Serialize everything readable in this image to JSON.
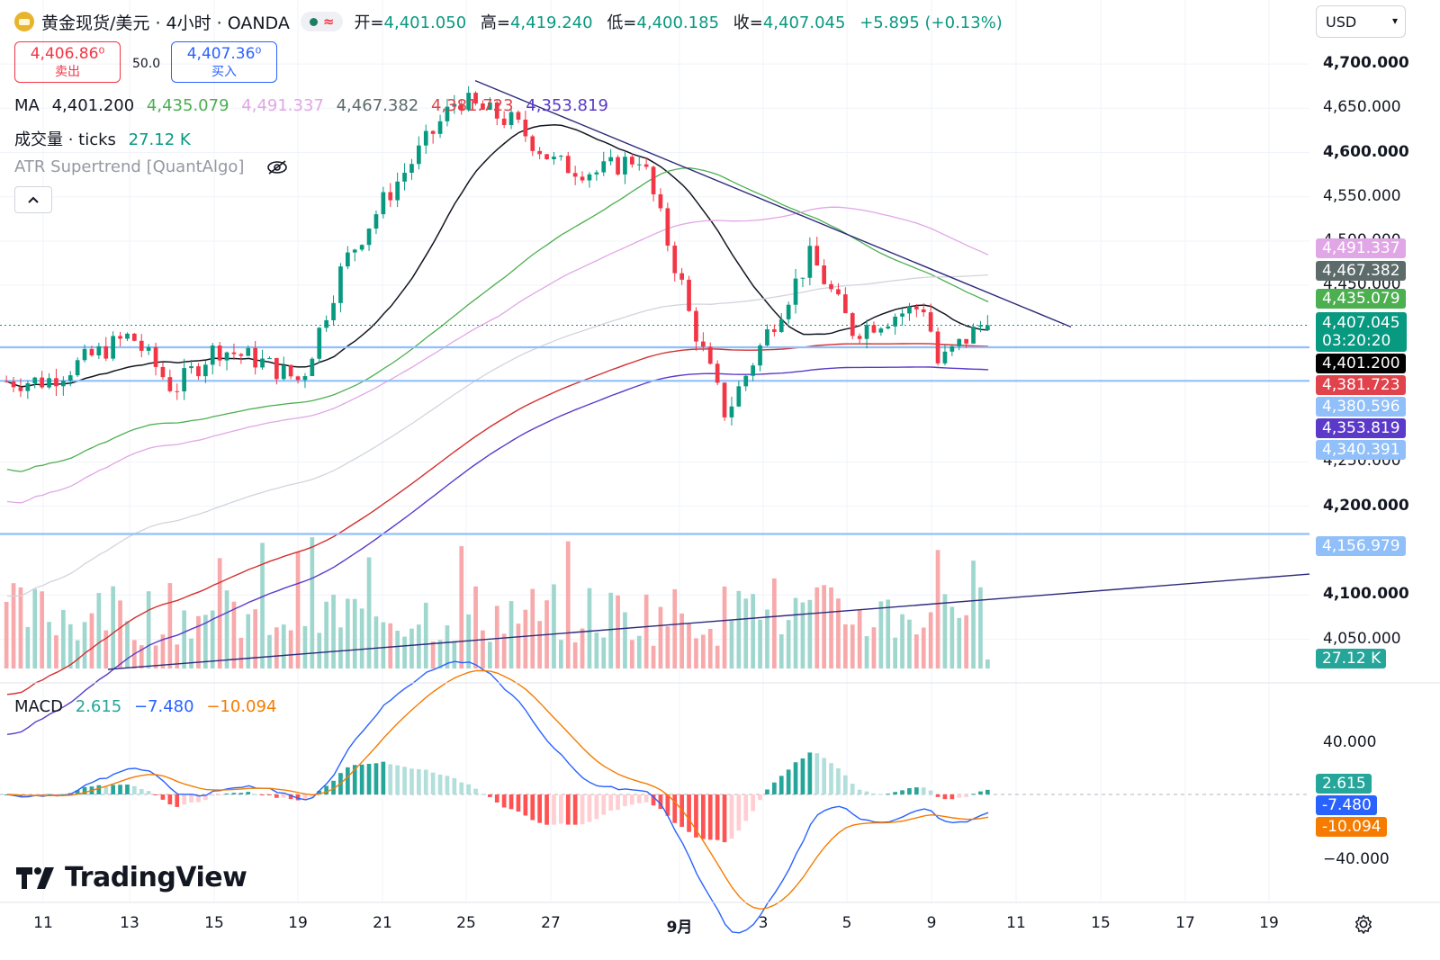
{
  "header": {
    "title": "黄金现货/美元 · 4小时 · OANDA",
    "ohlc": {
      "open_label": "开=",
      "open": "4,401.050",
      "high_label": "高=",
      "high": "4,419.240",
      "low_label": "低=",
      "low": "4,400.185",
      "close_label": "收=",
      "close": "4,407.045",
      "change": "+5.895 (+0.13%)"
    }
  },
  "trade": {
    "sell_price": "4,406.86⁰",
    "sell_label": "卖出",
    "spread": "50.0",
    "buy_price": "4,407.36⁰",
    "buy_label": "买入"
  },
  "legend": {
    "ma_label": "MA",
    "ma_values": [
      "4,401.200",
      "4,435.079",
      "4,491.337",
      "4,467.382",
      "4,381.723",
      "4,353.819"
    ],
    "volume_label": "成交量 · ticks",
    "volume_value": "27.12 K",
    "atr_label": "ATR Supertrend [QuantAlgo]",
    "macd_label": "MACD",
    "macd_values": [
      "2.615",
      "−7.480",
      "−10.094"
    ]
  },
  "currency": "USD",
  "brand": "TradingView",
  "colors": {
    "up": "#089981",
    "down": "#f23645",
    "ma_black": "#131722",
    "ma_green": "#4caf50",
    "ma_pink": "#e1a6e6",
    "ma_grey": "#d1d4dc",
    "ma_red": "#d32f2f",
    "ma_purple": "#5b3ac9",
    "trendline": "#2d2a7a",
    "hline": "#90bff9",
    "macd_line": "#2962ff",
    "signal_line": "#f57c00"
  },
  "y_axis_ticks": [
    "4,700.000",
    "4,650.000",
    "4,600.000",
    "4,550.000",
    "4,500.000",
    "4,450.000",
    "4,250.000",
    "4,200.000",
    "4,100.000",
    "4,050.000"
  ],
  "macd_axis_ticks": [
    "40.000",
    "−40.000"
  ],
  "price_labels": [
    {
      "text": "4,491.337",
      "color": "#e1a6e6"
    },
    {
      "text": "4,467.382",
      "color": "#5d6b6b"
    },
    {
      "text": "4,435.079",
      "color": "#4caf50"
    },
    {
      "text": "4,401.200",
      "color": "#000000"
    },
    {
      "text": "4,381.723",
      "color": "#e0434b"
    },
    {
      "text": "4,380.596",
      "color": "#90bff9"
    },
    {
      "text": "4,353.819",
      "color": "#5b3ac9"
    },
    {
      "text": "4,340.391",
      "color": "#90bff9"
    },
    {
      "text": "4,156.979",
      "color": "#90bff9"
    }
  ],
  "last_price": {
    "price": "4,407.045",
    "countdown": "03:20:20"
  },
  "volume_axis_label": "27.12 K",
  "macd_labels": [
    {
      "text": "2.615",
      "color": "#26a69a"
    },
    {
      "text": "-7.480",
      "color": "#2962ff"
    },
    {
      "text": "-10.094",
      "color": "#f57c00"
    }
  ],
  "x_axis_labels": [
    "11",
    "13",
    "15",
    "19",
    "21",
    "25",
    "27",
    "9月",
    "3",
    "5",
    "9",
    "11",
    "15",
    "17",
    "19"
  ],
  "chart_data": {
    "type": "candlestick",
    "symbol": "黄金现货/美元",
    "interval": "4小时",
    "ylim": [
      4020,
      4720
    ],
    "horizontal_levels": [
      4380.596,
      4340.391,
      4156.979
    ],
    "trendlines": [
      {
        "from": [
          "25",
          4700
        ],
        "to": [
          "12",
          4405
        ]
      },
      {
        "from": [
          "11",
          4010
        ],
        "to": [
          "19",
          4109
        ]
      }
    ],
    "anchors": [
      {
        "x": "11",
        "close": 4340
      },
      {
        "x": "13",
        "close": 4395
      },
      {
        "x": "14",
        "close": 4330
      },
      {
        "x": "15",
        "close": 4380
      },
      {
        "x": "18",
        "close": 4365
      },
      {
        "x": "19",
        "close": 4340
      },
      {
        "x": "20",
        "close": 4480
      },
      {
        "x": "21",
        "close": 4560
      },
      {
        "x": "22",
        "close": 4630
      },
      {
        "x": "24",
        "close": 4680
      },
      {
        "x": "25",
        "close": 4670
      },
      {
        "x": "26",
        "close": 4650
      },
      {
        "x": "27",
        "close": 4600
      },
      {
        "x": "28",
        "close": 4590
      },
      {
        "x": "29",
        "close": 4610
      },
      {
        "x": "30",
        "close": 4480
      },
      {
        "x": "31",
        "close": 4450
      },
      {
        "x": "9月",
        "close": 4440
      },
      {
        "x": "2",
        "close": 4300
      },
      {
        "x": "3",
        "close": 4400
      },
      {
        "x": "4",
        "close": 4490
      },
      {
        "x": "5",
        "close": 4400
      },
      {
        "x": "6",
        "close": 4420
      },
      {
        "x": "8",
        "close": 4430
      },
      {
        "x": "9",
        "close": 4360
      },
      {
        "x": "10",
        "close": 4407
      }
    ],
    "moving_averages": [
      {
        "name": "MA",
        "last": 4401.2
      },
      {
        "name": "MA",
        "last": 4435.079
      },
      {
        "name": "MA",
        "last": 4491.337
      },
      {
        "name": "MA",
        "last": 4467.382
      },
      {
        "name": "MA",
        "last": 4381.723
      },
      {
        "name": "MA",
        "last": 4353.819
      }
    ],
    "volume_last": "27.12 K",
    "macd": {
      "histogram": 2.615,
      "macd": -7.48,
      "signal": -10.094,
      "ylim": [
        -60,
        60
      ]
    }
  }
}
